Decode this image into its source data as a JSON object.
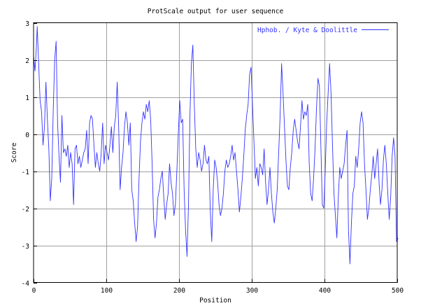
{
  "colors": {
    "line": "#3333ff",
    "grid": "#a0a0a0",
    "axis": "#000000",
    "background": "#ffffff"
  },
  "chart_data": {
    "type": "line",
    "title": "ProtScale output for user sequence",
    "xlabel": "Position",
    "ylabel": "Score",
    "xlim": [
      0,
      500
    ],
    "ylim": [
      -4,
      3
    ],
    "xticks": [
      0,
      100,
      200,
      300,
      400,
      500
    ],
    "yticks": [
      -4,
      -3,
      -2,
      -1,
      0,
      1,
      2,
      3
    ],
    "xtick_labels": [
      "0",
      "100",
      "200",
      "300",
      "400",
      "500"
    ],
    "ytick_labels": [
      "-4",
      "-3",
      "-2",
      "-1",
      "0",
      "1",
      "2",
      "3"
    ],
    "grid": true,
    "legend_position": "top-right",
    "series": [
      {
        "name": "Hphob. / Kyte & Doolittle",
        "points": [
          [
            0,
            2.1
          ],
          [
            2,
            1.7
          ],
          [
            4,
            2.4
          ],
          [
            5,
            2.9
          ],
          [
            7,
            1.9
          ],
          [
            9,
            0.9
          ],
          [
            11,
            0.6
          ],
          [
            13,
            -0.3
          ],
          [
            15,
            0.2
          ],
          [
            17,
            1.4
          ],
          [
            19,
            0.4
          ],
          [
            21,
            -0.4
          ],
          [
            23,
            -1.8
          ],
          [
            25,
            -1.2
          ],
          [
            27,
            0.6
          ],
          [
            29,
            2.0
          ],
          [
            31,
            2.5
          ],
          [
            33,
            0.3
          ],
          [
            35,
            -0.6
          ],
          [
            37,
            -1.3
          ],
          [
            39,
            0.5
          ],
          [
            41,
            -0.5
          ],
          [
            43,
            -0.4
          ],
          [
            45,
            -0.6
          ],
          [
            47,
            -0.3
          ],
          [
            49,
            -0.9
          ],
          [
            51,
            -0.5
          ],
          [
            53,
            -0.8
          ],
          [
            55,
            -1.9
          ],
          [
            57,
            -0.4
          ],
          [
            59,
            -0.3
          ],
          [
            61,
            -0.8
          ],
          [
            63,
            -0.6
          ],
          [
            65,
            -0.9
          ],
          [
            67,
            -0.7
          ],
          [
            69,
            -0.5
          ],
          [
            71,
            -0.4
          ],
          [
            73,
            0.1
          ],
          [
            75,
            -0.8
          ],
          [
            77,
            0.3
          ],
          [
            79,
            0.5
          ],
          [
            81,
            0.4
          ],
          [
            83,
            -0.3
          ],
          [
            85,
            -0.9
          ],
          [
            87,
            -0.5
          ],
          [
            89,
            -0.8
          ],
          [
            91,
            -1.0
          ],
          [
            93,
            -0.5
          ],
          [
            95,
            0.3
          ],
          [
            97,
            -0.8
          ],
          [
            99,
            -0.3
          ],
          [
            101,
            -0.5
          ],
          [
            103,
            -0.7
          ],
          [
            105,
            -0.3
          ],
          [
            107,
            0.2
          ],
          [
            109,
            -0.5
          ],
          [
            111,
            0.2
          ],
          [
            113,
            0.5
          ],
          [
            115,
            1.4
          ],
          [
            117,
            0.2
          ],
          [
            119,
            -1.5
          ],
          [
            121,
            -0.9
          ],
          [
            123,
            -0.5
          ],
          [
            125,
            0.2
          ],
          [
            127,
            0.6
          ],
          [
            129,
            0.3
          ],
          [
            131,
            -0.3
          ],
          [
            133,
            0.3
          ],
          [
            135,
            -1.5
          ],
          [
            137,
            -1.8
          ],
          [
            139,
            -2.4
          ],
          [
            141,
            -2.9
          ],
          [
            143,
            -2.5
          ],
          [
            145,
            -1.2
          ],
          [
            147,
            -0.2
          ],
          [
            149,
            0.3
          ],
          [
            151,
            0.6
          ],
          [
            153,
            0.4
          ],
          [
            155,
            0.8
          ],
          [
            157,
            0.6
          ],
          [
            159,
            0.9
          ],
          [
            161,
            0.4
          ],
          [
            163,
            -0.8
          ],
          [
            165,
            -2.3
          ],
          [
            167,
            -2.8
          ],
          [
            169,
            -2.4
          ],
          [
            171,
            -1.7
          ],
          [
            173,
            -1.5
          ],
          [
            175,
            -1.2
          ],
          [
            177,
            -1.0
          ],
          [
            179,
            -1.7
          ],
          [
            181,
            -2.3
          ],
          [
            183,
            -1.9
          ],
          [
            185,
            -1.6
          ],
          [
            187,
            -0.8
          ],
          [
            189,
            -1.3
          ],
          [
            191,
            -1.6
          ],
          [
            193,
            -2.2
          ],
          [
            195,
            -1.9
          ],
          [
            197,
            -1.0
          ],
          [
            199,
            0.0
          ],
          [
            201,
            0.9
          ],
          [
            203,
            0.3
          ],
          [
            205,
            0.4
          ],
          [
            207,
            -1.5
          ],
          [
            209,
            -2.6
          ],
          [
            211,
            -3.3
          ],
          [
            213,
            -1.9
          ],
          [
            215,
            0.5
          ],
          [
            217,
            1.9
          ],
          [
            219,
            2.4
          ],
          [
            221,
            0.8
          ],
          [
            223,
            -0.4
          ],
          [
            225,
            -0.9
          ],
          [
            227,
            -0.5
          ],
          [
            229,
            -0.7
          ],
          [
            231,
            -1.0
          ],
          [
            233,
            -0.8
          ],
          [
            235,
            -0.3
          ],
          [
            237,
            -0.7
          ],
          [
            239,
            -0.8
          ],
          [
            241,
            -0.6
          ],
          [
            243,
            -2.1
          ],
          [
            245,
            -2.9
          ],
          [
            247,
            -1.5
          ],
          [
            249,
            -0.7
          ],
          [
            251,
            -0.9
          ],
          [
            253,
            -1.3
          ],
          [
            255,
            -1.9
          ],
          [
            257,
            -2.2
          ],
          [
            259,
            -2.0
          ],
          [
            261,
            -1.6
          ],
          [
            263,
            -1.0
          ],
          [
            265,
            -0.7
          ],
          [
            267,
            -0.9
          ],
          [
            269,
            -0.8
          ],
          [
            271,
            -0.6
          ],
          [
            273,
            -0.3
          ],
          [
            275,
            -0.7
          ],
          [
            277,
            -0.5
          ],
          [
            279,
            -1.0
          ],
          [
            281,
            -1.5
          ],
          [
            283,
            -2.1
          ],
          [
            285,
            -1.7
          ],
          [
            287,
            -1.2
          ],
          [
            289,
            -0.6
          ],
          [
            291,
            0.1
          ],
          [
            293,
            0.5
          ],
          [
            295,
            0.8
          ],
          [
            297,
            1.6
          ],
          [
            299,
            1.8
          ],
          [
            301,
            0.8
          ],
          [
            303,
            -0.2
          ],
          [
            305,
            -1.2
          ],
          [
            307,
            -0.9
          ],
          [
            309,
            -1.4
          ],
          [
            311,
            -0.8
          ],
          [
            313,
            -0.9
          ],
          [
            315,
            -1.1
          ],
          [
            317,
            -0.4
          ],
          [
            319,
            -1.3
          ],
          [
            321,
            -1.9
          ],
          [
            323,
            -1.5
          ],
          [
            325,
            -0.9
          ],
          [
            327,
            -1.6
          ],
          [
            329,
            -2.1
          ],
          [
            331,
            -2.4
          ],
          [
            333,
            -2.0
          ],
          [
            335,
            -1.5
          ],
          [
            337,
            -0.5
          ],
          [
            339,
            0.5
          ],
          [
            341,
            1.9
          ],
          [
            343,
            1.1
          ],
          [
            345,
            0.2
          ],
          [
            347,
            -0.7
          ],
          [
            349,
            -1.4
          ],
          [
            351,
            -1.5
          ],
          [
            353,
            -0.9
          ],
          [
            355,
            -0.5
          ],
          [
            357,
            0.1
          ],
          [
            359,
            0.4
          ],
          [
            361,
            0.1
          ],
          [
            363,
            -0.2
          ],
          [
            365,
            -0.4
          ],
          [
            367,
            0.2
          ],
          [
            369,
            0.9
          ],
          [
            371,
            0.4
          ],
          [
            373,
            0.6
          ],
          [
            375,
            0.5
          ],
          [
            377,
            0.8
          ],
          [
            379,
            -0.8
          ],
          [
            381,
            -1.6
          ],
          [
            383,
            -1.8
          ],
          [
            385,
            -1.2
          ],
          [
            387,
            -0.4
          ],
          [
            389,
            0.7
          ],
          [
            391,
            1.5
          ],
          [
            393,
            1.3
          ],
          [
            395,
            -0.3
          ],
          [
            397,
            -1.9
          ],
          [
            399,
            -2.0
          ],
          [
            401,
            -1.0
          ],
          [
            403,
            0.3
          ],
          [
            405,
            1.1
          ],
          [
            407,
            1.9
          ],
          [
            409,
            1.1
          ],
          [
            411,
            -0.3
          ],
          [
            413,
            -1.6
          ],
          [
            415,
            -2.2
          ],
          [
            417,
            -2.8
          ],
          [
            419,
            -1.7
          ],
          [
            421,
            -0.9
          ],
          [
            423,
            -1.2
          ],
          [
            425,
            -1.0
          ],
          [
            427,
            -0.8
          ],
          [
            429,
            -0.3
          ],
          [
            431,
            0.1
          ],
          [
            433,
            -2.6
          ],
          [
            435,
            -3.5
          ],
          [
            437,
            -2.4
          ],
          [
            439,
            -1.6
          ],
          [
            441,
            -1.4
          ],
          [
            443,
            -0.6
          ],
          [
            445,
            -0.9
          ],
          [
            447,
            -0.4
          ],
          [
            449,
            0.3
          ],
          [
            451,
            0.6
          ],
          [
            453,
            0.3
          ],
          [
            455,
            -0.8
          ],
          [
            457,
            -1.5
          ],
          [
            459,
            -2.3
          ],
          [
            461,
            -2.0
          ],
          [
            463,
            -1.5
          ],
          [
            465,
            -1.1
          ],
          [
            467,
            -0.6
          ],
          [
            469,
            -1.2
          ],
          [
            471,
            -0.8
          ],
          [
            473,
            -0.4
          ],
          [
            475,
            -1.3
          ],
          [
            477,
            -1.9
          ],
          [
            479,
            -1.5
          ],
          [
            481,
            -0.7
          ],
          [
            483,
            -0.3
          ],
          [
            485,
            -0.8
          ],
          [
            487,
            -1.6
          ],
          [
            489,
            -2.3
          ],
          [
            491,
            -1.7
          ],
          [
            493,
            -0.6
          ],
          [
            495,
            -0.1
          ],
          [
            497,
            -0.6
          ],
          [
            499,
            -2.9
          ],
          [
            501,
            -2.8
          ]
        ]
      }
    ]
  }
}
